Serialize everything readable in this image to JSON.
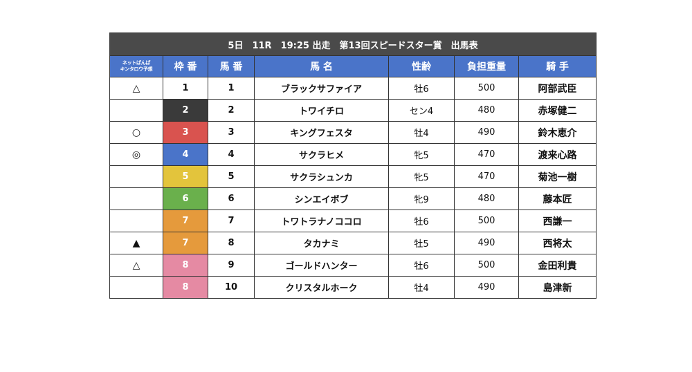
{
  "title": "5日　11R　19:25 出走　第13回スピードスター賞　出馬表",
  "headers": {
    "prediction_line1": "ネットぱんぱ",
    "prediction_line2": "キンタロウ予想",
    "frame": "枠 番",
    "number": "馬 番",
    "horse": "馬 名",
    "sex_age": "性齢",
    "weight": "負担重量",
    "jockey": "騎 手"
  },
  "frame_colors": {
    "1": {
      "bg": "#ffffff",
      "fg": "#111111"
    },
    "2": {
      "bg": "#3a3a3a",
      "fg": "#ffffff"
    },
    "3": {
      "bg": "#d9534f",
      "fg": "#ffffff"
    },
    "4": {
      "bg": "#4a74c9",
      "fg": "#ffffff"
    },
    "5": {
      "bg": "#e3c43c",
      "fg": "#ffffff"
    },
    "6": {
      "bg": "#6ab04c",
      "fg": "#ffffff"
    },
    "7": {
      "bg": "#e59a3c",
      "fg": "#ffffff"
    },
    "8": {
      "bg": "#e58aa3",
      "fg": "#ffffff"
    }
  },
  "entries": [
    {
      "mark": "△",
      "frame": "1",
      "number": "1",
      "horse": "ブラックサファイア",
      "sex_age": "牡6",
      "weight": "500",
      "jockey": "阿部武臣"
    },
    {
      "mark": "",
      "frame": "2",
      "number": "2",
      "horse": "トワイチロ",
      "sex_age": "セン4",
      "weight": "480",
      "jockey": "赤塚健二"
    },
    {
      "mark": "○",
      "frame": "3",
      "number": "3",
      "horse": "キングフェスタ",
      "sex_age": "牡4",
      "weight": "490",
      "jockey": "鈴木恵介"
    },
    {
      "mark": "◎",
      "frame": "4",
      "number": "4",
      "horse": "サクラヒメ",
      "sex_age": "牝5",
      "weight": "470",
      "jockey": "渡来心路"
    },
    {
      "mark": "",
      "frame": "5",
      "number": "5",
      "horse": "サクラシュンカ",
      "sex_age": "牝5",
      "weight": "470",
      "jockey": "菊池一樹"
    },
    {
      "mark": "",
      "frame": "6",
      "number": "6",
      "horse": "シンエイボブ",
      "sex_age": "牝9",
      "weight": "480",
      "jockey": "藤本匠"
    },
    {
      "mark": "",
      "frame": "7",
      "number": "7",
      "horse": "トワトラナノココロ",
      "sex_age": "牡6",
      "weight": "500",
      "jockey": "西謙一"
    },
    {
      "mark": "▲",
      "frame": "7",
      "number": "8",
      "horse": "タカナミ",
      "sex_age": "牡5",
      "weight": "490",
      "jockey": "西将太"
    },
    {
      "mark": "△",
      "frame": "8",
      "number": "9",
      "horse": "ゴールドハンター",
      "sex_age": "牡6",
      "weight": "500",
      "jockey": "金田利貴"
    },
    {
      "mark": "",
      "frame": "8",
      "number": "10",
      "horse": "クリスタルホーク",
      "sex_age": "牡4",
      "weight": "490",
      "jockey": "島津新"
    }
  ]
}
